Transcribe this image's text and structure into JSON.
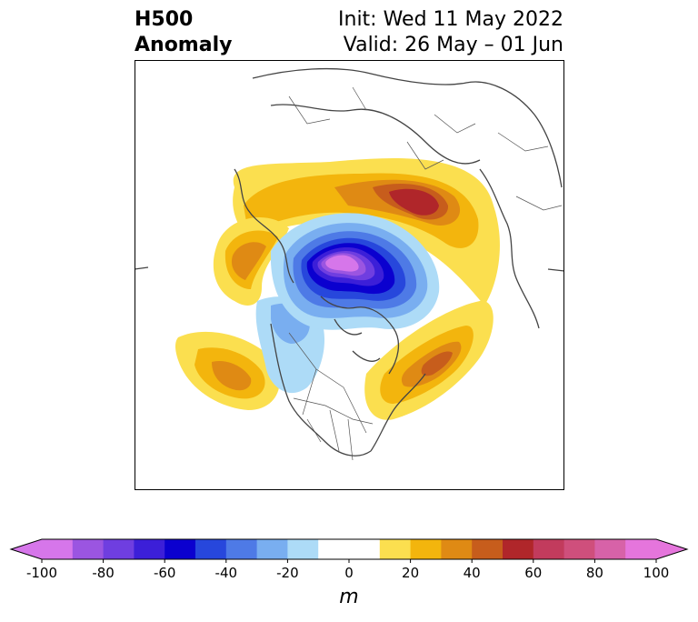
{
  "title": {
    "left_line1": "H500",
    "left_line2": "Anomaly",
    "right_line1": "Init: Wed 11 May 2022",
    "right_line2": "Valid: 26 May – 01 Jun"
  },
  "colorbar": {
    "unit": "m",
    "ticks": [
      "-100",
      "-80",
      "-60",
      "-40",
      "-20",
      "0",
      "20",
      "40",
      "60",
      "80",
      "100"
    ],
    "levels": [
      -100,
      -90,
      -80,
      -70,
      -60,
      -50,
      -40,
      -30,
      -20,
      -10,
      10,
      20,
      30,
      40,
      50,
      60,
      70,
      80,
      90,
      100
    ],
    "colors": [
      "#d676ea",
      "#9b55e1",
      "#6f3ee0",
      "#3c1fd8",
      "#0b00cf",
      "#2747dc",
      "#4e7ae6",
      "#79aef0",
      "#addbf7",
      "#ffffff",
      "#ffffff",
      "#fbdf4f",
      "#f3b50d",
      "#df8a14",
      "#c75d1c",
      "#b0262a",
      "#c23b5d",
      "#cf4f7c",
      "#d762a8",
      "#e575dc"
    ],
    "under_color": "#d676ea",
    "over_color": "#e575dc"
  },
  "map": {
    "projection": "north-polar-stereographic",
    "anomalies": [
      {
        "region": "Arctic Ocean / Canadian Archipelago",
        "sign": "negative",
        "peak": -100
      },
      {
        "region": "Central Russia / Siberia",
        "sign": "positive",
        "peak": 60
      },
      {
        "region": "Alaska / Bering Sea",
        "sign": "positive",
        "peak": 40
      },
      {
        "region": "Northeast Pacific",
        "sign": "positive",
        "peak": 40
      },
      {
        "region": "Northwest Atlantic / Eastern Canada",
        "sign": "positive",
        "peak": 50
      },
      {
        "region": "Western Canada",
        "sign": "negative",
        "peak": -20
      }
    ]
  }
}
